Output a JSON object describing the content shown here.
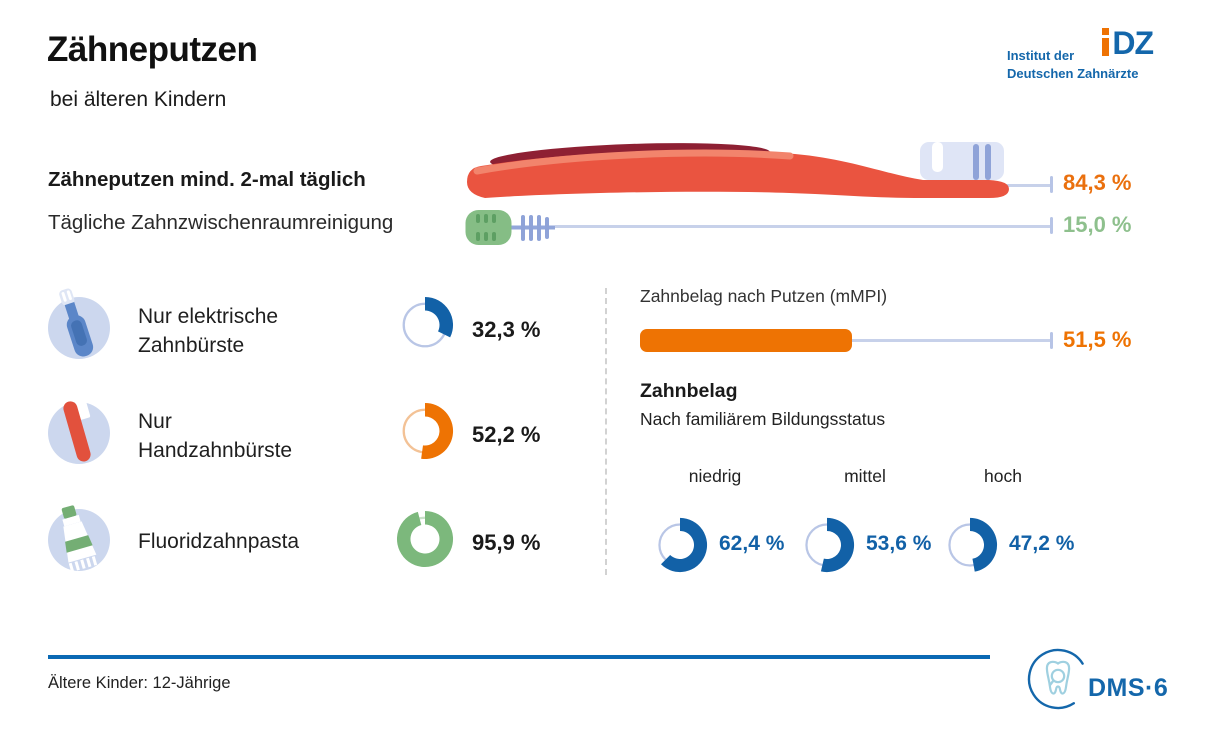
{
  "header": {
    "title": "Zähneputzen",
    "subtitle": "bei älteren Kindern"
  },
  "logo_idz": {
    "line1": "Institut der",
    "line2": "Deutschen Zahnärzte",
    "mark_dz": "DZ",
    "orange": "#ee7203",
    "blue": "#1467ab"
  },
  "top_bars": {
    "items": [
      {
        "label": "Zähneputzen mind. 2-mal täglich",
        "value_label": "84,3 %",
        "pct": 84.3,
        "color": "#ea700e",
        "illustration": "toothbrush"
      },
      {
        "label": "Tägliche Zahnzwischenraumreinigung",
        "value_label": "15,0 %",
        "pct": 15.0,
        "color": "#8ec08d",
        "illustration": "interdental-brush"
      }
    ]
  },
  "usage_stats": {
    "items": [
      {
        "label_line1": "Nur elektrische",
        "label_line2": "Zahnbürste",
        "value_label": "32,3 %",
        "pct": 32.3,
        "color": "#1261a7",
        "track": "#b9c6e6",
        "icon": "electric-toothbrush"
      },
      {
        "label_line1": "Nur",
        "label_line2": "Handzahnbürste",
        "value_label": "52,2 %",
        "pct": 52.2,
        "color": "#ee7303",
        "track": "#f3c296",
        "icon": "manual-toothbrush"
      },
      {
        "label_line1": "Fluoridzahnpasta",
        "label_line2": "",
        "value_label": "95,9 %",
        "pct": 95.9,
        "color": "#7cb87c",
        "track": "#c9e0c9",
        "icon": "toothpaste-tube"
      }
    ]
  },
  "plaque_bar": {
    "label": "Zahnbelag nach Putzen (mMPI)",
    "value_label": "51,5 %",
    "pct": 51.5,
    "color": "#ee7303"
  },
  "plaque_by_status": {
    "title": "Zahnbelag",
    "subtitle": "Nach familiärem Bildungsstatus",
    "items": [
      {
        "label": "niedrig",
        "value_label": "62,4 %",
        "pct": 62.4,
        "color": "#1261a7",
        "track": "#b9c6e6"
      },
      {
        "label": "mittel",
        "value_label": "53,6 %",
        "pct": 53.6,
        "color": "#1261a7",
        "track": "#b9c6e6"
      },
      {
        "label": "hoch",
        "value_label": "47,2 %",
        "pct": 47.2,
        "color": "#1261a7",
        "track": "#b9c6e6"
      }
    ]
  },
  "footer": {
    "note": "Ältere Kinder: 12-Jährige",
    "logo_text": "DMS·6"
  },
  "colors": {
    "accent_orange": "#ee7303",
    "accent_blue": "#1261a7",
    "accent_green": "#7cb87c",
    "light_green_text": "#8ec08d",
    "lavender": "#ccd7ee",
    "track_line": "#c7d1ea",
    "footer_rule": "#0a69b4",
    "logo_blue": "#1467ab"
  },
  "chart_data": [
    {
      "type": "bar",
      "title": "Zähneputzen bei älteren Kindern",
      "orientation": "horizontal",
      "categories": [
        "Zähneputzen mind. 2-mal täglich",
        "Tägliche Zahnzwischenraumreinigung"
      ],
      "values": [
        84.3,
        15.0
      ],
      "unit": "%",
      "xlim": [
        0,
        100
      ],
      "grid": false,
      "legend": false
    },
    {
      "type": "pie",
      "title": "Zahnputzmittel (unabhängige Einzelwert-Donuts)",
      "categories": [
        "Nur elektrische Zahnbürste",
        "Nur Handzahnbürste",
        "Fluoridzahnpasta"
      ],
      "values": [
        32.3,
        52.2,
        95.9
      ],
      "unit": "%",
      "note": "three independent single-value donut charts, arc starts at 12 o'clock clockwise"
    },
    {
      "type": "bar",
      "title": "Zahnbelag nach Putzen (mMPI)",
      "orientation": "horizontal",
      "categories": [
        "Zahnbelag nach Putzen (mMPI)"
      ],
      "values": [
        51.5
      ],
      "unit": "%",
      "xlim": [
        0,
        100
      ],
      "grid": false,
      "legend": false
    },
    {
      "type": "pie",
      "title": "Zahnbelag nach familiärem Bildungsstatus",
      "categories": [
        "niedrig",
        "mittel",
        "hoch"
      ],
      "values": [
        62.4,
        53.6,
        47.2
      ],
      "unit": "%",
      "note": "three independent single-value donut charts, arc starts at 12 o'clock clockwise"
    }
  ]
}
